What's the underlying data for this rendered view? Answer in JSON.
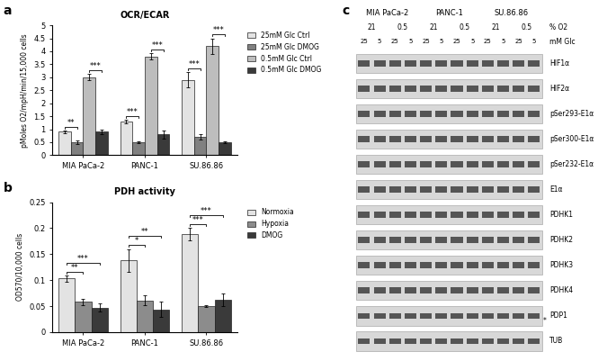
{
  "chart_data": [
    {
      "type": "bar",
      "panel": "a",
      "title": "OCR/ECAR",
      "ylabel": "pMoles O2/mpH/min/15,000 cells",
      "categories": [
        "MIA PaCa-2",
        "PANC-1",
        "SU.86.86"
      ],
      "series": [
        {
          "name": "25mM Glc Ctrl",
          "color": "#e3e3e3",
          "values": [
            0.9,
            1.3,
            2.9
          ],
          "errors": [
            0.05,
            0.07,
            0.3
          ]
        },
        {
          "name": "25mM Glc DMOG",
          "color": "#808080",
          "values": [
            0.5,
            0.5,
            0.7
          ],
          "errors": [
            0.08,
            0.05,
            0.1
          ]
        },
        {
          "name": "0.5mM Glc Ctrl",
          "color": "#bdbdbd",
          "values": [
            3.0,
            3.8,
            4.2
          ],
          "errors": [
            0.12,
            0.12,
            0.3
          ]
        },
        {
          "name": "0.5mM Glc DMOG",
          "color": "#3a3a3a",
          "values": [
            0.9,
            0.8,
            0.5
          ],
          "errors": [
            0.1,
            0.15,
            0.05
          ]
        }
      ],
      "ylim": [
        0,
        5
      ],
      "yticks": [
        0,
        0.5,
        1,
        1.5,
        2,
        2.5,
        3,
        3.5,
        4,
        4.5,
        5
      ],
      "legend": "upper left",
      "annotations": [
        {
          "text": "**",
          "category": "MIA PaCa-2",
          "pair": [
            "25mM Glc Ctrl",
            "25mM Glc DMOG"
          ]
        },
        {
          "text": "***",
          "category": "MIA PaCa-2",
          "pair": [
            "0.5mM Glc Ctrl",
            "0.5mM Glc DMOG"
          ]
        },
        {
          "text": "***",
          "category": "PANC-1",
          "pair": [
            "25mM Glc Ctrl",
            "25mM Glc DMOG"
          ]
        },
        {
          "text": "***",
          "category": "PANC-1",
          "pair": [
            "0.5mM Glc Ctrl",
            "0.5mM Glc DMOG"
          ]
        },
        {
          "text": "***",
          "category": "SU.86.86",
          "pair": [
            "25mM Glc Ctrl",
            "25mM Glc DMOG"
          ]
        },
        {
          "text": "***",
          "category": "SU.86.86",
          "pair": [
            "0.5mM Glc Ctrl",
            "0.5mM Glc DMOG"
          ]
        }
      ]
    },
    {
      "type": "bar",
      "panel": "b",
      "title": "PDH activity",
      "ylabel": "OD570/10,000 cells",
      "categories": [
        "MIA PaCa-2",
        "PANC-1",
        "SU.86.86"
      ],
      "series": [
        {
          "name": "Normoxia",
          "color": "#e3e3e3",
          "values": [
            0.103,
            0.138,
            0.188
          ],
          "errors": [
            0.006,
            0.022,
            0.012
          ]
        },
        {
          "name": "Hypoxia",
          "color": "#8c8c8c",
          "values": [
            0.058,
            0.061,
            0.05
          ],
          "errors": [
            0.006,
            0.01,
            0.002
          ]
        },
        {
          "name": "DMOG",
          "color": "#3a3a3a",
          "values": [
            0.047,
            0.044,
            0.062
          ],
          "errors": [
            0.008,
            0.015,
            0.012
          ]
        }
      ],
      "ylim": [
        0,
        0.25
      ],
      "yticks": [
        0,
        0.05,
        0.1,
        0.15,
        0.2,
        0.25
      ],
      "legend": "upper left",
      "annotations": [
        {
          "text": "**",
          "category": "MIA PaCa-2",
          "pair": [
            "Normoxia",
            "Hypoxia"
          ]
        },
        {
          "text": "***",
          "category": "MIA PaCa-2",
          "pair": [
            "Normoxia",
            "DMOG"
          ]
        },
        {
          "text": "*",
          "category": "PANC-1",
          "pair": [
            "Normoxia",
            "Hypoxia"
          ]
        },
        {
          "text": "**",
          "category": "PANC-1",
          "pair": [
            "Normoxia",
            "DMOG"
          ]
        },
        {
          "text": "***",
          "category": "SU.86.86",
          "pair": [
            "Normoxia",
            "Hypoxia"
          ]
        },
        {
          "text": "***",
          "category": "SU.86.86",
          "pair": [
            "Normoxia",
            "DMOG"
          ]
        }
      ]
    }
  ],
  "blot": {
    "panel": "c",
    "cell_lines": [
      "MIA PaCa-2",
      "PANC-1",
      "SU.86.86"
    ],
    "o2_label": "% O2",
    "o2": [
      "21",
      "0.5"
    ],
    "glc_label": "mM Glc",
    "glc": [
      "25",
      "5"
    ],
    "rows": [
      "HIF1α",
      "HIF2α",
      "pSer293-E1α",
      "pSer300-E1α",
      "pSer232-E1α",
      "E1α",
      "PDHK1",
      "PDHK2",
      "PDHK3",
      "PDHK4",
      "PDP1",
      "TUB"
    ],
    "note": {
      "row": "PDP1",
      "text": "*"
    }
  }
}
